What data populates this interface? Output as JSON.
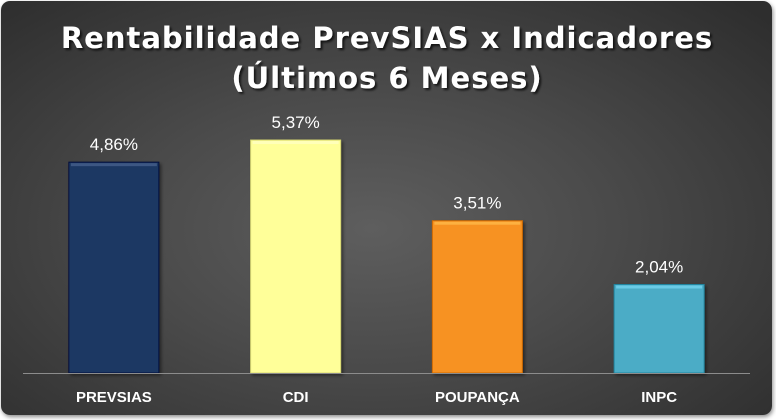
{
  "chart_data": {
    "type": "bar",
    "title": "Rentabilidade PrevSIAS x Indicadores",
    "subtitle": "(Últimos 6 Meses)",
    "categories": [
      "PREVSIAS",
      "CDI",
      "POUPANÇA",
      "INPC"
    ],
    "values": [
      4.86,
      5.37,
      3.51,
      2.04
    ],
    "value_labels": [
      "4,86%",
      "5,37%",
      "3,51%",
      "2,04%"
    ],
    "colors": [
      "#1f3864",
      "#ffff99",
      "#f79222",
      "#4bacc6"
    ],
    "ylim": [
      0,
      6.5
    ],
    "grid": false,
    "legend": "none",
    "xlabel": "",
    "ylabel": ""
  }
}
